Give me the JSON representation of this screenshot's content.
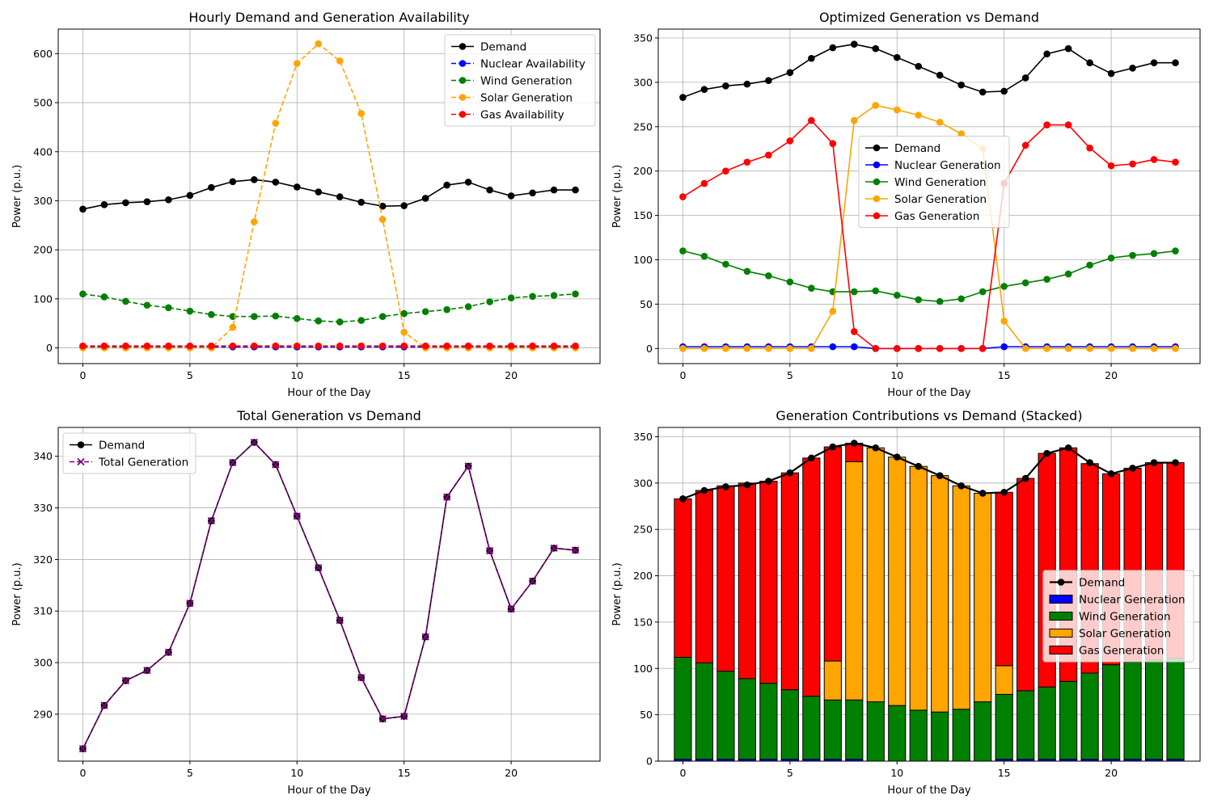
{
  "chart_data": [
    {
      "type": "line",
      "title": "Hourly Demand and Generation Availability",
      "xlabel": "Hour of the Day",
      "ylabel": "Power (p.u.)",
      "xlim": [
        -1.15,
        24.15
      ],
      "ylim": [
        -32,
        650
      ],
      "xticks": [
        0,
        5,
        10,
        15,
        20
      ],
      "yticks": [
        0,
        100,
        200,
        300,
        400,
        500,
        600
      ],
      "grid": true,
      "legend_position": "top-right",
      "x": [
        0,
        1,
        2,
        3,
        4,
        5,
        6,
        7,
        8,
        9,
        10,
        11,
        12,
        13,
        14,
        15,
        16,
        17,
        18,
        19,
        20,
        21,
        22,
        23
      ],
      "series": [
        {
          "name": "Demand",
          "color": "#000000",
          "style": "solid",
          "marker": "o",
          "values": [
            283,
            292,
            296,
            298,
            302,
            311,
            327,
            339,
            343,
            338,
            328,
            318,
            308,
            297,
            289,
            290,
            305,
            332,
            338,
            322,
            310,
            316,
            322,
            322
          ]
        },
        {
          "name": "Nuclear Availability",
          "color": "#0000ff",
          "style": "dashed",
          "marker": "o",
          "values": [
            2,
            2,
            2,
            2,
            2,
            2,
            2,
            2,
            2,
            2,
            2,
            2,
            2,
            2,
            2,
            2,
            2,
            2,
            2,
            2,
            2,
            2,
            2,
            2
          ]
        },
        {
          "name": "Wind Generation",
          "color": "#008000",
          "style": "dashed",
          "marker": "o",
          "values": [
            110,
            104,
            95,
            87,
            82,
            75,
            68,
            64,
            64,
            65,
            60,
            55,
            53,
            56,
            64,
            70,
            74,
            78,
            84,
            94,
            102,
            105,
            107,
            110
          ]
        },
        {
          "name": "Solar Generation",
          "color": "#ffa500",
          "style": "dashed",
          "marker": "o",
          "values": [
            0,
            0,
            0,
            0,
            0,
            0,
            0,
            42,
            257,
            458,
            580,
            620,
            585,
            478,
            262,
            32,
            0,
            0,
            0,
            0,
            0,
            0,
            0,
            0
          ]
        },
        {
          "name": "Gas Availability",
          "color": "#ff0000",
          "style": "dashed",
          "marker": "o",
          "values": [
            4,
            4,
            4,
            4,
            4,
            4,
            4,
            4,
            4,
            4,
            4,
            4,
            4,
            4,
            4,
            4,
            4,
            4,
            4,
            4,
            4,
            4,
            4,
            4
          ]
        }
      ]
    },
    {
      "type": "line",
      "title": "Optimized Generation vs Demand",
      "xlabel": "Hour of the Day",
      "ylabel": "Power (p.u.)",
      "xlim": [
        -1.15,
        24.15
      ],
      "ylim": [
        -17,
        360
      ],
      "xticks": [
        0,
        5,
        10,
        15,
        20
      ],
      "yticks": [
        0,
        50,
        100,
        150,
        200,
        250,
        300,
        350
      ],
      "grid": true,
      "legend_position": "center",
      "x": [
        0,
        1,
        2,
        3,
        4,
        5,
        6,
        7,
        8,
        9,
        10,
        11,
        12,
        13,
        14,
        15,
        16,
        17,
        18,
        19,
        20,
        21,
        22,
        23
      ],
      "series": [
        {
          "name": "Demand",
          "color": "#000000",
          "style": "solid",
          "marker": "o",
          "values": [
            283,
            292,
            296,
            298,
            302,
            311,
            327,
            339,
            343,
            338,
            328,
            318,
            308,
            297,
            289,
            290,
            305,
            332,
            338,
            322,
            310,
            316,
            322,
            322
          ]
        },
        {
          "name": "Nuclear Generation",
          "color": "#0000ff",
          "style": "solid",
          "marker": "o",
          "values": [
            2,
            2,
            2,
            2,
            2,
            2,
            2,
            2,
            2,
            0,
            0,
            0,
            0,
            0,
            0,
            2,
            2,
            2,
            2,
            2,
            2,
            2,
            2,
            2
          ]
        },
        {
          "name": "Wind Generation",
          "color": "#008000",
          "style": "solid",
          "marker": "o",
          "values": [
            110,
            104,
            95,
            87,
            82,
            75,
            68,
            64,
            64,
            65,
            60,
            55,
            53,
            56,
            64,
            70,
            74,
            78,
            84,
            94,
            102,
            105,
            107,
            110
          ]
        },
        {
          "name": "Solar Generation",
          "color": "#ffa500",
          "style": "solid",
          "marker": "o",
          "values": [
            0,
            0,
            0,
            0,
            0,
            0,
            0,
            42,
            257,
            274,
            269,
            263,
            255,
            242,
            225,
            31,
            0,
            0,
            0,
            0,
            0,
            0,
            0,
            0
          ]
        },
        {
          "name": "Gas Generation",
          "color": "#ff0000",
          "style": "solid",
          "marker": "o",
          "values": [
            171,
            186,
            200,
            210,
            218,
            234,
            257,
            231,
            19,
            0,
            0,
            0,
            0,
            0,
            0,
            186,
            229,
            252,
            252,
            226,
            206,
            208,
            213,
            210
          ]
        }
      ]
    },
    {
      "type": "line",
      "title": "Total Generation vs Demand",
      "xlabel": "Hour of the Day",
      "ylabel": "Power (p.u.)",
      "xlim": [
        -1.15,
        24.15
      ],
      "ylim": [
        280.9,
        345.6
      ],
      "xticks": [
        0,
        5,
        10,
        15,
        20
      ],
      "yticks": [
        290,
        300,
        310,
        320,
        330,
        340
      ],
      "grid": true,
      "legend_position": "top-left",
      "x": [
        0,
        1,
        2,
        3,
        4,
        5,
        6,
        7,
        8,
        9,
        10,
        11,
        12,
        13,
        14,
        15,
        16,
        17,
        18,
        19,
        20,
        21,
        22,
        23
      ],
      "series": [
        {
          "name": "Demand",
          "color": "#000000",
          "style": "solid",
          "marker": "o",
          "values": [
            283.3,
            291.7,
            296.5,
            298.5,
            302.0,
            311.5,
            327.5,
            338.8,
            342.7,
            338.4,
            328.4,
            318.4,
            308.2,
            297.1,
            289.1,
            289.6,
            305.0,
            332.1,
            338.1,
            321.7,
            310.4,
            315.8,
            322.2,
            321.8
          ]
        },
        {
          "name": "Total Generation",
          "color": "#800080",
          "style": "dashed",
          "marker": "x",
          "values": [
            283.3,
            291.7,
            296.5,
            298.5,
            302.0,
            311.5,
            327.5,
            338.8,
            342.7,
            338.4,
            328.4,
            318.4,
            308.2,
            297.1,
            289.1,
            289.6,
            305.0,
            332.1,
            338.1,
            321.7,
            310.4,
            315.8,
            322.2,
            321.8
          ]
        }
      ]
    },
    {
      "type": "bar",
      "stacked": true,
      "title": "Generation Contributions vs Demand (Stacked)",
      "xlabel": "Hour of the Day",
      "ylabel": "Power (p.u.)",
      "xlim": [
        -1.15,
        24.15
      ],
      "ylim": [
        0,
        360
      ],
      "xticks": [
        0,
        5,
        10,
        15,
        20
      ],
      "yticks": [
        0,
        50,
        100,
        150,
        200,
        250,
        300,
        350
      ],
      "grid": true,
      "legend_position": "center-right",
      "x": [
        0,
        1,
        2,
        3,
        4,
        5,
        6,
        7,
        8,
        9,
        10,
        11,
        12,
        13,
        14,
        15,
        16,
        17,
        18,
        19,
        20,
        21,
        22,
        23
      ],
      "series": [
        {
          "name": "Nuclear Generation",
          "color": "#0000ff",
          "values": [
            2,
            2,
            2,
            2,
            2,
            2,
            2,
            2,
            2,
            0,
            0,
            0,
            0,
            0,
            0,
            2,
            2,
            2,
            2,
            2,
            2,
            2,
            2,
            2
          ]
        },
        {
          "name": "Wind Generation",
          "color": "#008000",
          "values": [
            110,
            104,
            95,
            87,
            82,
            75,
            68,
            64,
            64,
            64,
            60,
            55,
            53,
            56,
            64,
            70,
            74,
            78,
            84,
            93,
            102,
            105,
            107,
            109
          ]
        },
        {
          "name": "Solar Generation",
          "color": "#ffa500",
          "values": [
            0,
            0,
            0,
            0,
            0,
            0,
            0,
            42,
            257,
            274,
            268,
            263,
            255,
            241,
            225,
            31,
            0,
            0,
            0,
            0,
            0,
            0,
            0,
            0
          ]
        },
        {
          "name": "Gas Generation",
          "color": "#ff0000",
          "values": [
            171,
            186,
            200,
            211,
            218,
            234,
            257,
            231,
            20,
            0,
            0,
            0,
            0,
            0,
            0,
            187,
            229,
            252,
            252,
            226,
            206,
            209,
            213,
            211
          ]
        }
      ],
      "line_series": {
        "name": "Demand",
        "color": "#000000",
        "marker": "o",
        "values": [
          283,
          292,
          296,
          298,
          302,
          311,
          327,
          339,
          343,
          338,
          328,
          318,
          308,
          297,
          289,
          290,
          305,
          332,
          338,
          322,
          310,
          316,
          322,
          322
        ]
      }
    }
  ]
}
